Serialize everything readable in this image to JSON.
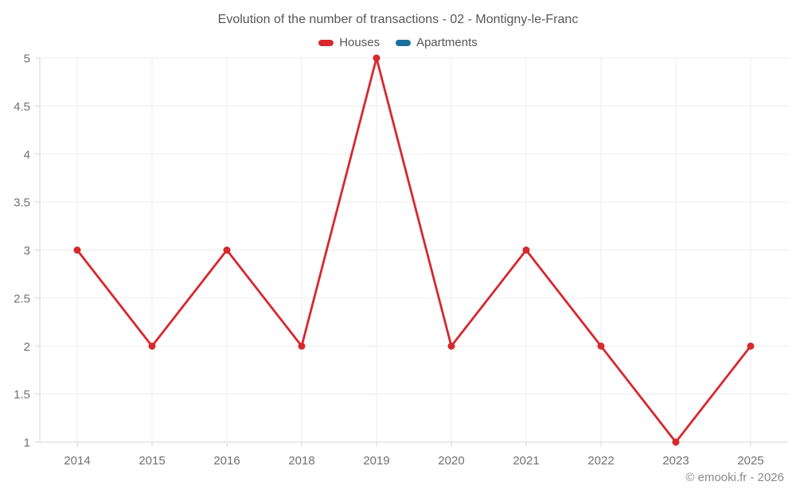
{
  "page": {
    "watermark": "© emooki.fr - 2026"
  },
  "chart_data": {
    "type": "line",
    "title": "Evolution of the number of transactions - 02 - Montigny-le-Franc",
    "categories": [
      "2014",
      "2015",
      "2016",
      "2018",
      "2019",
      "2020",
      "2021",
      "2022",
      "2023",
      "2025"
    ],
    "series": [
      {
        "name": "Houses",
        "color": "#d7282e",
        "values": [
          3,
          2,
          3,
          2,
          5,
          2,
          3,
          2,
          1,
          2
        ]
      },
      {
        "name": "Apartments",
        "color": "#1c6e9c",
        "values": []
      }
    ],
    "xlabel": "",
    "ylabel": "",
    "ylim": [
      1,
      5
    ],
    "ytick_step": 0.5,
    "grid": true,
    "legend_position": "top",
    "marker_style": "circle"
  }
}
